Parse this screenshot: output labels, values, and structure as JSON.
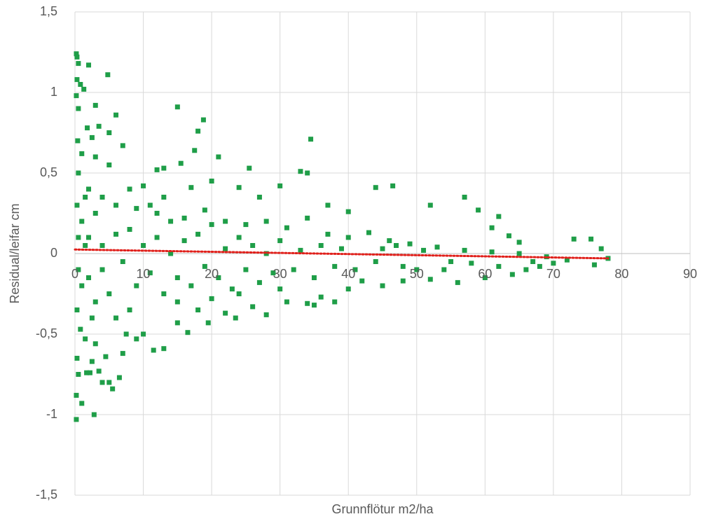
{
  "chart_data": {
    "type": "scatter",
    "x_label": "Grunnflötur m2/ha",
    "y_label": "Residual/leifar cm",
    "xlim": [
      0,
      90
    ],
    "xticks": [
      0,
      10,
      20,
      30,
      40,
      50,
      60,
      70,
      80,
      90
    ],
    "ylim": [
      -1.5,
      1.5
    ],
    "yticks": [
      {
        "value": 1.5,
        "label": "1,5"
      },
      {
        "value": 1,
        "label": "1"
      },
      {
        "value": 0.5,
        "label": "0,5"
      },
      {
        "value": 0,
        "label": "0"
      },
      {
        "value": -0.5,
        "label": "-0,5"
      },
      {
        "value": -1,
        "label": "-1"
      },
      {
        "value": -1.5,
        "label": "-1,5"
      }
    ],
    "grid": true,
    "series": [
      {
        "color": "#1f9e48",
        "x": [
          0.2,
          0.3,
          0.5,
          2,
          4.8,
          0.3,
          0.8,
          1.3,
          0.2,
          3,
          6,
          0.5,
          1.8,
          3.5,
          15,
          18.8,
          18,
          34.5,
          21,
          17.5,
          5,
          7,
          2.5,
          0.4,
          33,
          34,
          25.5,
          13,
          15.5,
          12,
          44,
          46.5,
          57,
          52,
          59,
          62,
          61,
          63.5,
          65,
          73,
          75.5,
          77,
          78,
          76,
          70,
          68,
          66,
          64,
          60,
          56,
          52,
          48,
          45,
          42,
          38,
          36,
          35,
          34,
          31,
          28,
          23.5,
          22,
          19.5,
          16.5,
          13,
          11.5,
          9,
          7.5,
          6.5,
          5.5,
          5,
          4,
          3.5,
          2.5,
          1.7,
          2.2,
          0.5,
          0.3,
          0.2,
          0.2,
          2.8,
          1,
          4.5,
          3,
          1.5,
          0.8,
          7,
          10,
          15,
          18,
          26,
          30,
          40,
          50,
          55,
          47,
          40,
          37,
          30,
          27,
          24,
          20,
          17,
          10,
          8,
          5,
          3,
          1,
          0.5,
          2,
          4,
          6,
          9,
          12,
          14,
          16,
          19,
          22,
          25,
          28,
          31,
          34,
          37,
          40,
          43,
          46,
          49,
          53,
          57,
          61,
          65,
          69,
          72,
          1,
          1,
          2,
          2,
          3,
          3,
          4,
          4,
          5,
          6,
          7,
          8,
          9,
          10,
          11,
          12,
          13,
          14,
          15,
          16,
          17,
          18,
          19,
          20,
          21,
          22,
          23,
          24,
          25,
          26,
          27,
          28,
          29,
          30,
          32,
          33,
          35,
          36,
          38,
          39,
          41,
          44,
          45,
          48,
          51,
          54,
          58,
          62,
          67,
          0.5,
          0.5,
          0.3,
          0.3,
          1.5,
          1.5,
          2.5,
          6,
          8,
          11,
          13,
          15,
          20,
          24
        ],
        "values": [
          1.24,
          1.22,
          1.18,
          1.17,
          1.11,
          1.08,
          1.05,
          1.02,
          0.98,
          0.92,
          0.86,
          0.9,
          0.78,
          0.79,
          0.91,
          0.83,
          0.76,
          0.71,
          0.6,
          0.64,
          0.75,
          0.67,
          0.72,
          0.7,
          0.51,
          0.5,
          0.53,
          0.53,
          0.56,
          0.52,
          0.41,
          0.42,
          0.35,
          0.3,
          0.27,
          0.23,
          0.16,
          0.11,
          0.07,
          0.09,
          0.09,
          0.03,
          -0.03,
          -0.07,
          -0.06,
          -0.08,
          -0.1,
          -0.13,
          -0.15,
          -0.18,
          -0.16,
          -0.17,
          -0.2,
          -0.17,
          -0.3,
          -0.27,
          -0.32,
          -0.31,
          -0.3,
          -0.38,
          -0.4,
          -0.37,
          -0.43,
          -0.49,
          -0.59,
          -0.6,
          -0.53,
          -0.5,
          -0.77,
          -0.84,
          -0.8,
          -0.8,
          -0.73,
          -0.67,
          -0.74,
          -0.74,
          -0.75,
          -0.65,
          -0.88,
          -1.03,
          -1,
          -0.93,
          -0.64,
          -0.56,
          -0.53,
          -0.47,
          -0.62,
          -0.5,
          -0.43,
          -0.35,
          -0.33,
          -0.22,
          -0.22,
          -0.1,
          -0.05,
          0.05,
          0.26,
          0.3,
          0.42,
          0.35,
          0.41,
          0.45,
          0.41,
          0.42,
          0.4,
          0.55,
          0.6,
          0.62,
          0.5,
          0.4,
          0.35,
          0.3,
          0.28,
          0.25,
          0.2,
          0.22,
          0.27,
          0.2,
          0.18,
          0.2,
          0.16,
          0.22,
          0.12,
          0.1,
          0.13,
          0.08,
          0.06,
          0.04,
          0.02,
          0.01,
          0,
          -0.02,
          -0.04,
          0.2,
          -0.2,
          0.1,
          -0.15,
          0.25,
          -0.3,
          0.05,
          -0.1,
          -0.25,
          0.12,
          -0.05,
          0.15,
          -0.2,
          0.05,
          -0.12,
          0.1,
          -0.25,
          0,
          -0.15,
          0.08,
          -0.2,
          0.12,
          -0.08,
          0.18,
          -0.15,
          0.03,
          -0.22,
          0.1,
          -0.1,
          0.05,
          -0.18,
          0,
          -0.12,
          0.08,
          -0.1,
          0.02,
          -0.15,
          0.05,
          -0.08,
          0.03,
          -0.1,
          -0.05,
          0.03,
          -0.08,
          0.02,
          -0.1,
          -0.06,
          -0.08,
          -0.05,
          0.1,
          -0.1,
          0.3,
          -0.35,
          0.05,
          0.35,
          -0.4,
          -0.4,
          -0.35,
          0.3,
          0.35,
          -0.3,
          -0.28,
          -0.25
        ]
      }
    ],
    "trendline": {
      "x": [
        0,
        78
      ],
      "values": [
        0.025,
        -0.03
      ],
      "color": "#e0201b"
    }
  }
}
